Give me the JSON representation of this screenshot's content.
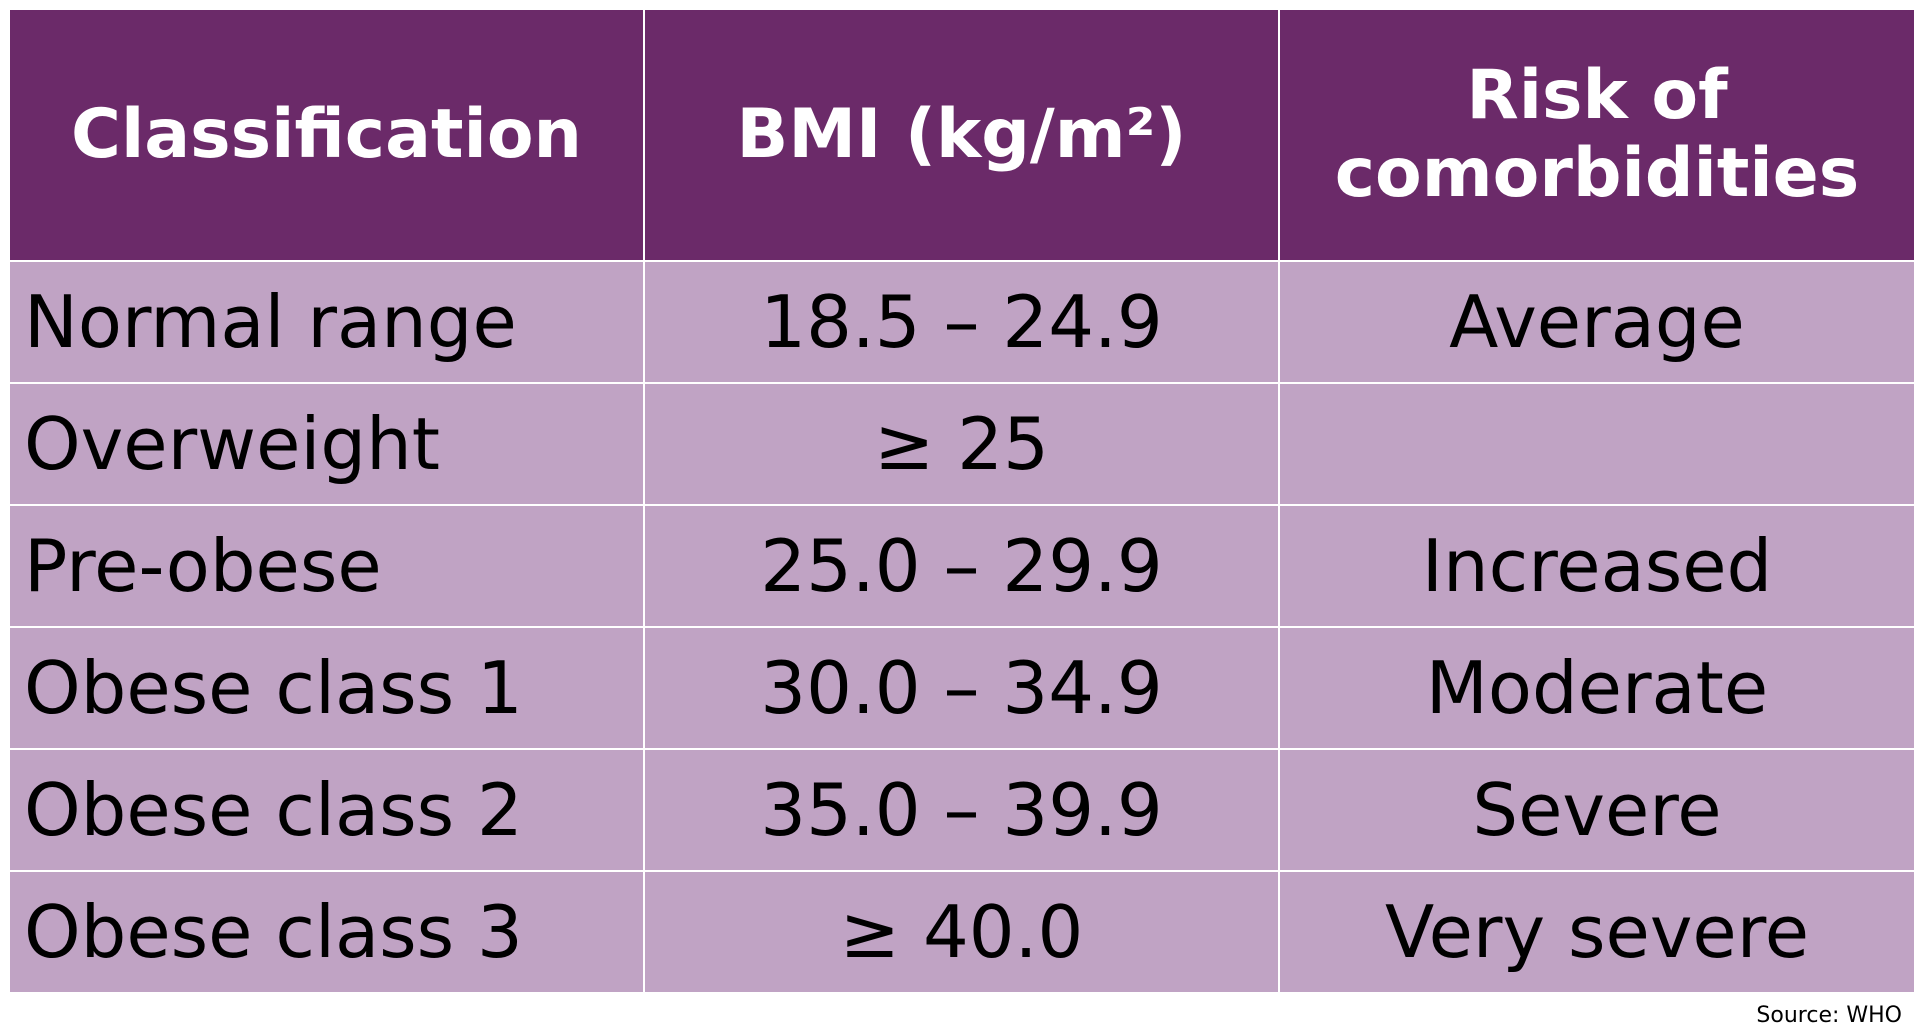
{
  "table": {
    "headers": [
      "Classification",
      "BMI (kg/m²)",
      "Risk of comorbidities"
    ],
    "rows": [
      [
        "Normal range",
        "18.5 – 24.9",
        "Average"
      ],
      [
        "Overweight",
        "≥ 25",
        null
      ],
      [
        "Pre-obese",
        "25.0 – 29.9",
        "Increased"
      ],
      [
        "Obese class 1",
        "30.0 – 34.9",
        "Moderate"
      ],
      [
        "Obese class 2",
        "35.0 – 39.9",
        "Severe"
      ],
      [
        "Obese class 3",
        "≥ 40.0",
        "Very severe"
      ]
    ]
  },
  "source": "Source: WHO"
}
